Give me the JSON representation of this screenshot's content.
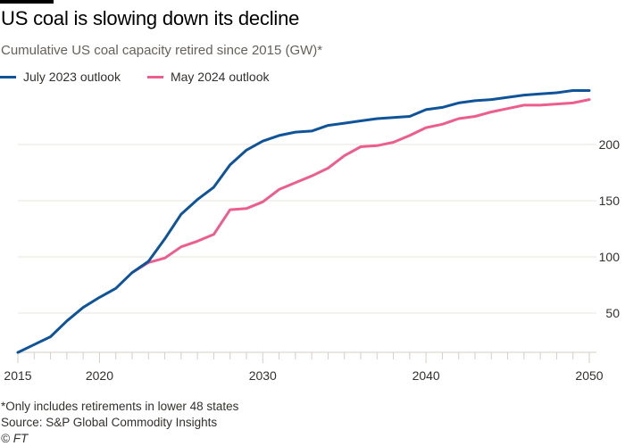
{
  "header": {
    "title": "US coal is slowing down its decline",
    "subtitle": "Cumulative US coal capacity retired since 2015 (GW)*"
  },
  "legend": [
    {
      "label": "July 2023 outlook",
      "color": "#0f5499"
    },
    {
      "label": "May 2024 outlook",
      "color": "#eb5e8d"
    }
  ],
  "footer": {
    "footnote": "*Only includes retirements in lower 48 states",
    "source": "Source: S&P Global Commodity Insights",
    "copyright": "© FT"
  },
  "chart_data": {
    "type": "line",
    "title": "US coal is slowing down its decline",
    "subtitle": "Cumulative US coal capacity retired since 2015 (GW)*",
    "xlabel": "",
    "ylabel": "GW",
    "xlim": [
      2015,
      2050
    ],
    "ylim": [
      15,
      255
    ],
    "x_ticks": [
      2015,
      2020,
      2030,
      2040,
      2050
    ],
    "y_ticks": [
      50,
      100,
      150,
      200
    ],
    "y_axis_side": "right",
    "grid": true,
    "legend_position": "top-left",
    "x": [
      2015,
      2016,
      2017,
      2018,
      2019,
      2020,
      2021,
      2022,
      2023,
      2024,
      2025,
      2026,
      2027,
      2028,
      2029,
      2030,
      2031,
      2032,
      2033,
      2034,
      2035,
      2036,
      2037,
      2038,
      2039,
      2040,
      2041,
      2042,
      2043,
      2044,
      2045,
      2046,
      2047,
      2048,
      2049,
      2050
    ],
    "series": [
      {
        "name": "July 2023 outlook",
        "color": "#0f5499",
        "values": [
          15,
          22,
          29,
          43,
          55,
          64,
          72,
          86,
          96,
          116,
          138,
          151,
          162,
          182,
          195,
          203,
          208,
          211,
          212,
          217,
          219,
          221,
          223,
          224,
          225,
          231,
          233,
          237,
          239,
          240,
          242,
          244,
          245,
          246,
          248,
          248
        ]
      },
      {
        "name": "May 2024 outlook",
        "color": "#eb5e8d",
        "values": [
          null,
          null,
          null,
          null,
          null,
          null,
          null,
          86,
          95,
          99,
          109,
          114,
          120,
          142,
          143,
          149,
          160,
          166,
          172,
          179,
          190,
          198,
          199,
          202,
          208,
          215,
          218,
          223,
          225,
          229,
          232,
          235,
          235,
          236,
          237,
          240
        ]
      }
    ]
  }
}
